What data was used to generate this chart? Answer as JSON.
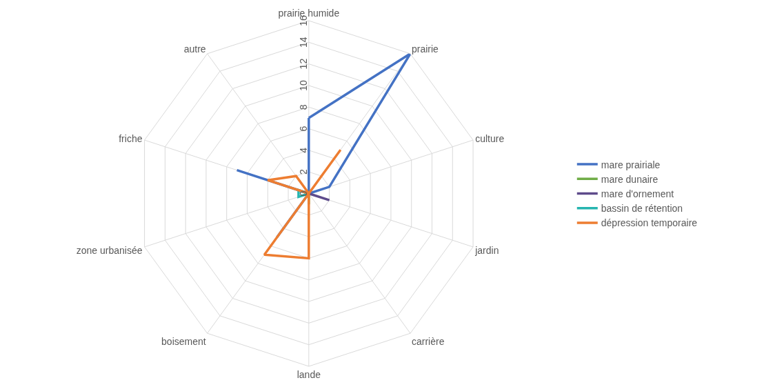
{
  "chart_data": {
    "type": "radar",
    "categories": [
      "prairie humide",
      "prairie",
      "culture",
      "jardin",
      "carrière",
      "lande",
      "boisement",
      "zone urbanisée",
      "friche",
      "autre"
    ],
    "series": [
      {
        "name": "mare prairiale",
        "color": "#4472c4",
        "values": [
          7,
          16,
          2,
          0,
          0,
          0,
          5,
          0,
          7,
          0
        ]
      },
      {
        "name": "mare dunaire",
        "color": "#70ad47",
        "values": [
          0,
          0,
          0,
          0,
          0,
          1,
          0,
          0,
          0,
          0
        ]
      },
      {
        "name": "mare d'ornement",
        "color": "#5e4b8b",
        "values": [
          0,
          0,
          0,
          2,
          0,
          0,
          0,
          0,
          0,
          0
        ]
      },
      {
        "name": "bassin de rétention",
        "color": "#26b5b0",
        "values": [
          0,
          0,
          0,
          0,
          0,
          0,
          0,
          1,
          1,
          0
        ]
      },
      {
        "name": "dépression temporaire",
        "color": "#ed7d31",
        "values": [
          0,
          5,
          0,
          0,
          0,
          6,
          7,
          0,
          4,
          2
        ]
      }
    ],
    "ylim": [
      0,
      16
    ],
    "yticks": [
      0,
      2,
      4,
      6,
      8,
      10,
      12,
      14,
      16
    ],
    "grid": true,
    "legend": "right",
    "marker": "none",
    "line_style": "solid"
  }
}
